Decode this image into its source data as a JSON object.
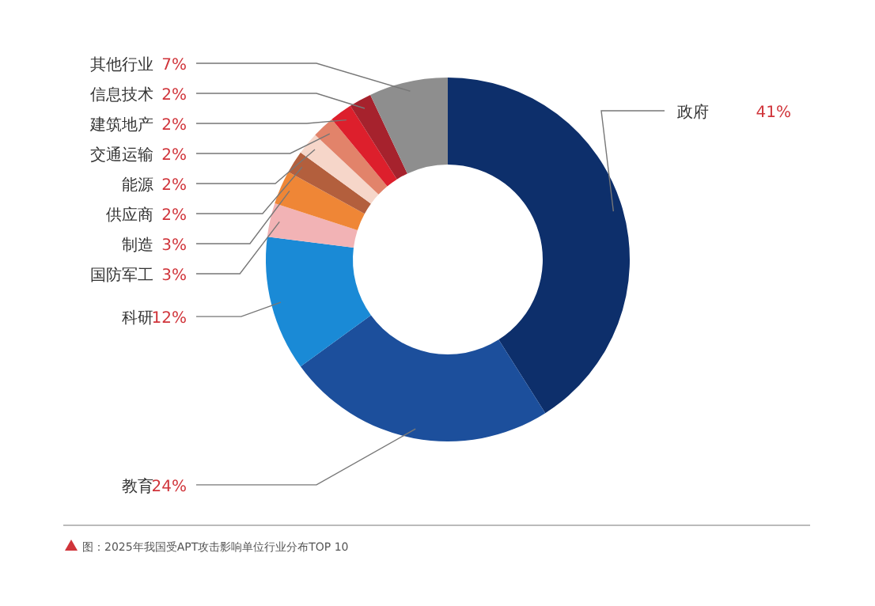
{
  "chart_data": {
    "type": "donut",
    "categories": [
      "政府",
      "教育",
      "科研",
      "国防军工",
      "制造",
      "供应商",
      "能源",
      "交通运输",
      "建筑地产",
      "信息技术",
      "其他行业"
    ],
    "values": [
      41,
      24,
      12,
      3,
      3,
      2,
      2,
      2,
      2,
      2,
      7
    ],
    "value_labels": [
      "41%",
      "24%",
      "12%",
      "3%",
      "3%",
      "2%",
      "2%",
      "2%",
      "2%",
      "2%",
      "7%"
    ],
    "colors": [
      "#0d2f6b",
      "#1c4f9c",
      "#1a8ad6",
      "#f2b3b5",
      "#ef8636",
      "#b35f3d",
      "#f6d6c9",
      "#e2836a",
      "#dd1f2c",
      "#a6222d",
      "#8e8e8e"
    ],
    "annotations": [
      "图：2025年我国受APT攻击影响单位行业分布TOP 10"
    ]
  }
}
